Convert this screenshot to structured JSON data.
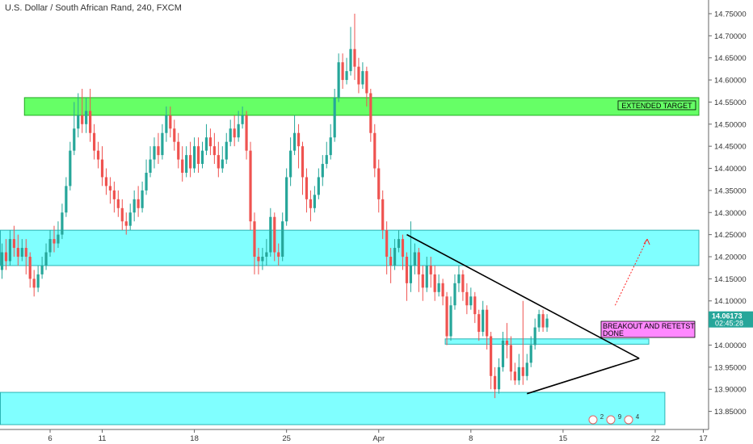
{
  "title": "U.S. Dollar / South African Rand, 240, FXCM",
  "colors": {
    "up": "#26a69a",
    "down": "#ef5350",
    "zone_fill": "#80ffff",
    "zone_stroke": "#2bb3b3",
    "target_fill": "#66ff66",
    "target_stroke": "#22aa22",
    "annotation_fill": "#ff88ff",
    "price_badge": "#26a69a",
    "arrow": "#ff2222",
    "axis_text": "#333333"
  },
  "chart_data": {
    "type": "candlestick",
    "title": "U.S. Dollar / South African Rand, 240, FXCM",
    "ylim": [
      13.82,
      14.77
    ],
    "xlim": [
      0,
      177
    ],
    "y_ticks": [
      13.85,
      13.9,
      13.95,
      14.0,
      14.05,
      14.1,
      14.15,
      14.2,
      14.25,
      14.3,
      14.35,
      14.4,
      14.45,
      14.5,
      14.55,
      14.6,
      14.65,
      14.7,
      14.75
    ],
    "y_tick_labels": [
      "13.85000",
      "13.90000",
      "13.95000",
      "14.00000",
      "14.05000",
      "14.10000",
      "14.15000",
      "14.20000",
      "14.25000",
      "14.30000",
      "14.35000",
      "14.40000",
      "14.45000",
      "14.50000",
      "14.55000",
      "14.60000",
      "14.65000",
      "14.70000",
      "14.75000"
    ],
    "x_ticks": [
      {
        "i": 12,
        "label": "6"
      },
      {
        "i": 25,
        "label": "11"
      },
      {
        "i": 48,
        "label": "18"
      },
      {
        "i": 71,
        "label": "25"
      },
      {
        "i": 94,
        "label": "Apr"
      },
      {
        "i": 117,
        "label": "8"
      },
      {
        "i": 140,
        "label": "15"
      },
      {
        "i": 163,
        "label": "22"
      },
      {
        "i": 175,
        "label": "17"
      }
    ],
    "candles": [
      [
        14.17,
        14.21,
        14.23,
        14.15
      ],
      [
        14.21,
        14.19,
        14.24,
        14.17
      ],
      [
        14.19,
        14.24,
        14.26,
        14.18
      ],
      [
        14.24,
        14.22,
        14.27,
        14.2
      ],
      [
        14.22,
        14.2,
        14.25,
        14.18
      ],
      [
        14.2,
        14.22,
        14.24,
        14.19
      ],
      [
        14.22,
        14.2,
        14.24,
        14.16
      ],
      [
        14.2,
        14.15,
        14.21,
        14.13
      ],
      [
        14.15,
        14.13,
        14.17,
        14.11
      ],
      [
        14.13,
        14.16,
        14.18,
        14.12
      ],
      [
        14.16,
        14.18,
        14.2,
        14.15
      ],
      [
        14.18,
        14.21,
        14.23,
        14.17
      ],
      [
        14.21,
        14.24,
        14.26,
        14.2
      ],
      [
        14.24,
        14.23,
        14.27,
        14.21
      ],
      [
        14.23,
        14.25,
        14.28,
        14.22
      ],
      [
        14.25,
        14.3,
        14.32,
        14.24
      ],
      [
        14.3,
        14.36,
        14.38,
        14.29
      ],
      [
        14.36,
        14.44,
        14.46,
        14.35
      ],
      [
        14.44,
        14.49,
        14.55,
        14.43
      ],
      [
        14.49,
        14.52,
        14.57,
        14.47
      ],
      [
        14.52,
        14.5,
        14.58,
        14.48
      ],
      [
        14.5,
        14.53,
        14.56,
        14.48
      ],
      [
        14.53,
        14.48,
        14.58,
        14.46
      ],
      [
        14.48,
        14.44,
        14.5,
        14.42
      ],
      [
        14.44,
        14.42,
        14.46,
        14.4
      ],
      [
        14.42,
        14.38,
        14.45,
        14.36
      ],
      [
        14.38,
        14.36,
        14.4,
        14.34
      ],
      [
        14.36,
        14.35,
        14.38,
        14.32
      ],
      [
        14.35,
        14.33,
        14.37,
        14.3
      ],
      [
        14.33,
        14.31,
        14.35,
        14.29
      ],
      [
        14.31,
        14.28,
        14.33,
        14.26
      ],
      [
        14.28,
        14.27,
        14.3,
        14.25
      ],
      [
        14.27,
        14.3,
        14.32,
        14.26
      ],
      [
        14.3,
        14.33,
        14.35,
        14.28
      ],
      [
        14.33,
        14.31,
        14.36,
        14.29
      ],
      [
        14.31,
        14.35,
        14.37,
        14.3
      ],
      [
        14.35,
        14.39,
        14.42,
        14.34
      ],
      [
        14.39,
        14.42,
        14.45,
        14.38
      ],
      [
        14.42,
        14.45,
        14.47,
        14.4
      ],
      [
        14.45,
        14.43,
        14.48,
        14.41
      ],
      [
        14.43,
        14.48,
        14.5,
        14.42
      ],
      [
        14.48,
        14.52,
        14.54,
        14.46
      ],
      [
        14.52,
        14.49,
        14.54,
        14.47
      ],
      [
        14.49,
        14.46,
        14.51,
        14.44
      ],
      [
        14.46,
        14.42,
        14.48,
        14.4
      ],
      [
        14.42,
        14.39,
        14.45,
        14.37
      ],
      [
        14.39,
        14.43,
        14.45,
        14.38
      ],
      [
        14.43,
        14.4,
        14.46,
        14.38
      ],
      [
        14.4,
        14.45,
        14.47,
        14.39
      ],
      [
        14.45,
        14.41,
        14.47,
        14.39
      ],
      [
        14.41,
        14.44,
        14.46,
        14.4
      ],
      [
        14.44,
        14.47,
        14.5,
        14.43
      ],
      [
        14.47,
        14.45,
        14.49,
        14.43
      ],
      [
        14.45,
        14.43,
        14.48,
        14.41
      ],
      [
        14.43,
        14.4,
        14.46,
        14.38
      ],
      [
        14.4,
        14.42,
        14.45,
        14.39
      ],
      [
        14.42,
        14.46,
        14.48,
        14.41
      ],
      [
        14.46,
        14.49,
        14.51,
        14.45
      ],
      [
        14.49,
        14.47,
        14.52,
        14.45
      ],
      [
        14.47,
        14.5,
        14.53,
        14.46
      ],
      [
        14.5,
        14.52,
        14.54,
        14.49
      ],
      [
        14.52,
        14.44,
        14.53,
        14.42
      ],
      [
        14.44,
        14.28,
        14.46,
        14.26
      ],
      [
        14.28,
        14.2,
        14.3,
        14.16
      ],
      [
        14.2,
        14.19,
        14.22,
        14.16
      ],
      [
        14.19,
        14.2,
        14.22,
        14.17
      ],
      [
        14.2,
        14.21,
        14.24,
        14.18
      ],
      [
        14.21,
        14.29,
        14.31,
        14.2
      ],
      [
        14.29,
        14.21,
        14.3,
        14.19
      ],
      [
        14.21,
        14.2,
        14.23,
        14.18
      ],
      [
        14.2,
        14.28,
        14.3,
        14.19
      ],
      [
        14.28,
        14.38,
        14.4,
        14.27
      ],
      [
        14.38,
        14.44,
        14.47,
        14.36
      ],
      [
        14.44,
        14.48,
        14.52,
        14.43
      ],
      [
        14.48,
        14.45,
        14.5,
        14.4
      ],
      [
        14.45,
        14.38,
        14.46,
        14.34
      ],
      [
        14.38,
        14.33,
        14.4,
        14.3
      ],
      [
        14.33,
        14.31,
        14.35,
        14.28
      ],
      [
        14.31,
        14.34,
        14.36,
        14.3
      ],
      [
        14.34,
        14.38,
        14.4,
        14.33
      ],
      [
        14.38,
        14.41,
        14.43,
        14.36
      ],
      [
        14.41,
        14.43,
        14.46,
        14.4
      ],
      [
        14.43,
        14.47,
        14.5,
        14.42
      ],
      [
        14.47,
        14.56,
        14.58,
        14.46
      ],
      [
        14.56,
        14.64,
        14.66,
        14.55
      ],
      [
        14.64,
        14.6,
        14.66,
        14.58
      ],
      [
        14.6,
        14.62,
        14.65,
        14.59
      ],
      [
        14.62,
        14.67,
        14.72,
        14.61
      ],
      [
        14.67,
        14.63,
        14.75,
        14.6
      ],
      [
        14.63,
        14.59,
        14.65,
        14.57
      ],
      [
        14.59,
        14.62,
        14.64,
        14.58
      ],
      [
        14.62,
        14.57,
        14.63,
        14.54
      ],
      [
        14.57,
        14.48,
        14.58,
        14.46
      ],
      [
        14.48,
        14.4,
        14.5,
        14.38
      ],
      [
        14.4,
        14.33,
        14.42,
        14.3
      ],
      [
        14.33,
        14.26,
        14.35,
        14.24
      ],
      [
        14.26,
        14.2,
        14.28,
        14.16
      ],
      [
        14.2,
        14.18,
        14.22,
        14.14
      ],
      [
        14.18,
        14.22,
        14.24,
        14.17
      ],
      [
        14.22,
        14.24,
        14.26,
        14.21
      ],
      [
        14.24,
        14.2,
        14.25,
        14.17
      ],
      [
        14.2,
        14.14,
        14.21,
        14.1
      ],
      [
        14.14,
        14.18,
        14.28,
        14.12
      ],
      [
        14.18,
        14.21,
        14.23,
        14.16
      ],
      [
        14.21,
        14.16,
        14.22,
        14.12
      ],
      [
        14.16,
        14.13,
        14.18,
        14.1
      ],
      [
        14.13,
        14.18,
        14.2,
        14.12
      ],
      [
        14.18,
        14.16,
        14.2,
        14.13
      ],
      [
        14.16,
        14.12,
        14.18,
        14.1
      ],
      [
        14.12,
        14.14,
        14.16,
        14.11
      ],
      [
        14.14,
        14.11,
        14.15,
        14.09
      ],
      [
        14.11,
        14.02,
        14.12,
        14.0
      ],
      [
        14.02,
        14.09,
        14.11,
        14.01
      ],
      [
        14.09,
        14.14,
        14.16,
        14.08
      ],
      [
        14.14,
        14.16,
        14.18,
        14.12
      ],
      [
        14.16,
        14.12,
        14.17,
        14.1
      ],
      [
        14.12,
        14.09,
        14.14,
        14.07
      ],
      [
        14.09,
        14.11,
        14.13,
        14.08
      ],
      [
        14.11,
        14.07,
        14.12,
        14.05
      ],
      [
        14.07,
        14.03,
        14.08,
        14.01
      ],
      [
        14.03,
        14.08,
        14.1,
        14.02
      ],
      [
        14.08,
        14.02,
        14.09,
        13.99
      ],
      [
        14.02,
        13.93,
        14.03,
        13.9
      ],
      [
        13.93,
        13.9,
        13.95,
        13.88
      ],
      [
        13.9,
        13.95,
        13.97,
        13.89
      ],
      [
        13.95,
        14.01,
        14.03,
        13.94
      ],
      [
        14.01,
        14.0,
        14.05,
        13.97
      ],
      [
        14.0,
        13.94,
        14.02,
        13.92
      ],
      [
        13.94,
        13.92,
        13.96,
        13.91
      ],
      [
        13.92,
        13.95,
        13.98,
        13.91
      ],
      [
        13.95,
        13.93,
        14.1,
        13.91
      ],
      [
        13.93,
        13.96,
        13.98,
        13.92
      ],
      [
        13.96,
        14.0,
        14.02,
        13.95
      ],
      [
        14.0,
        14.04,
        14.06,
        13.99
      ],
      [
        14.04,
        14.07,
        14.08,
        14.03
      ],
      [
        14.07,
        14.04,
        14.08,
        14.03
      ],
      [
        14.04,
        14.06,
        14.07,
        14.03
      ]
    ],
    "current_price": "14.06173",
    "countdown": "02:45:28",
    "zones": [
      {
        "from_i": 0,
        "to_i": 176,
        "top": 14.26,
        "bottom": 14.18,
        "kind": "support-resistance"
      },
      {
        "from_i": 6,
        "to_i": 176,
        "top": 14.56,
        "bottom": 14.52,
        "kind": "target",
        "label": "EXTENDED TARGET"
      },
      {
        "from_i": 111,
        "to_i": 161,
        "top": 14.014,
        "bottom": 14.002,
        "kind": "retest"
      },
      {
        "from_i": 0,
        "to_i": 165,
        "top": 13.893,
        "bottom": 13.82,
        "kind": "support"
      }
    ],
    "trendlines": [
      {
        "x1": 101,
        "y1": 14.25,
        "x2": 159,
        "y2": 13.97
      },
      {
        "x1": 131,
        "y1": 13.89,
        "x2": 159,
        "y2": 13.97
      }
    ],
    "annotation": {
      "line1": "BREAKOUT AND RETETST",
      "line2": "DONE"
    },
    "arrow": {
      "x1": 153,
      "y1": 14.09,
      "x2": 161,
      "y2": 14.24
    },
    "bottom_badges": [
      "2",
      "9",
      "4"
    ]
  }
}
